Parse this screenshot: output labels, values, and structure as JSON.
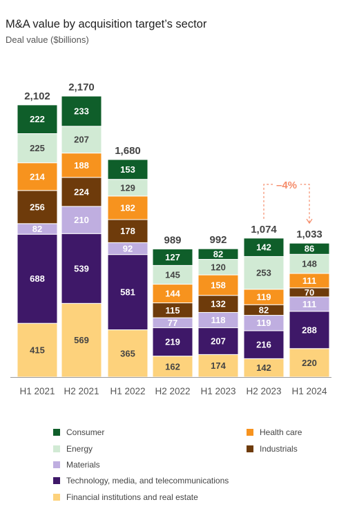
{
  "chart_data": {
    "type": "bar",
    "stacked": true,
    "title": "M&A value by acquisition target’s sector",
    "subtitle": "Deal value ($billions)",
    "categories": [
      "H1 2021",
      "H2 2021",
      "H1 2022",
      "H2 2022",
      "H1 2023",
      "H2 2023",
      "H1 2024"
    ],
    "totals": [
      "2,102",
      "2,170",
      "1,680",
      "989",
      "992",
      "1,074",
      "1,033"
    ],
    "series": [
      {
        "name": "Financial institutions and real estate",
        "color": "#fdd27c",
        "label_color": "#444444",
        "values": [
          415,
          569,
          365,
          162,
          174,
          142,
          220
        ]
      },
      {
        "name": "Technology, media, and telecommunications",
        "color": "#3e1868",
        "label_color": "#ffffff",
        "values": [
          688,
          539,
          581,
          219,
          207,
          216,
          288
        ]
      },
      {
        "name": "Materials",
        "color": "#bfaee0",
        "label_color": "#ffffff",
        "values": [
          82,
          210,
          92,
          77,
          118,
          119,
          111
        ]
      },
      {
        "name": "Industrials",
        "color": "#6e3b0b",
        "label_color": "#ffffff",
        "values": [
          256,
          224,
          178,
          115,
          132,
          82,
          70
        ]
      },
      {
        "name": "Health care",
        "color": "#f7931e",
        "label_color": "#ffffff",
        "values": [
          214,
          188,
          182,
          144,
          158,
          119,
          111
        ]
      },
      {
        "name": "Energy",
        "color": "#d1ead4",
        "label_color": "#444444",
        "values": [
          225,
          207,
          129,
          145,
          120,
          253,
          148
        ]
      },
      {
        "name": "Consumer",
        "color": "#0f5e2a",
        "label_color": "#ffffff",
        "values": [
          222,
          233,
          153,
          127,
          82,
          142,
          86
        ]
      }
    ],
    "annotation": {
      "text": "–4%",
      "from": "H2 2023",
      "to": "H1 2024",
      "color": "#f58c6a"
    },
    "legend": [
      {
        "label": "Consumer",
        "color": "#0f5e2a"
      },
      {
        "label": "Health care",
        "color": "#f7931e"
      },
      {
        "label": "Energy",
        "color": "#d1ead4"
      },
      {
        "label": "Industrials",
        "color": "#6e3b0b"
      },
      {
        "label": "Materials",
        "color": "#bfaee0"
      },
      {
        "label": "Technology, media, and telecommunications",
        "color": "#3e1868"
      },
      {
        "label": "Financial institutions and real estate",
        "color": "#fdd27c"
      }
    ]
  }
}
